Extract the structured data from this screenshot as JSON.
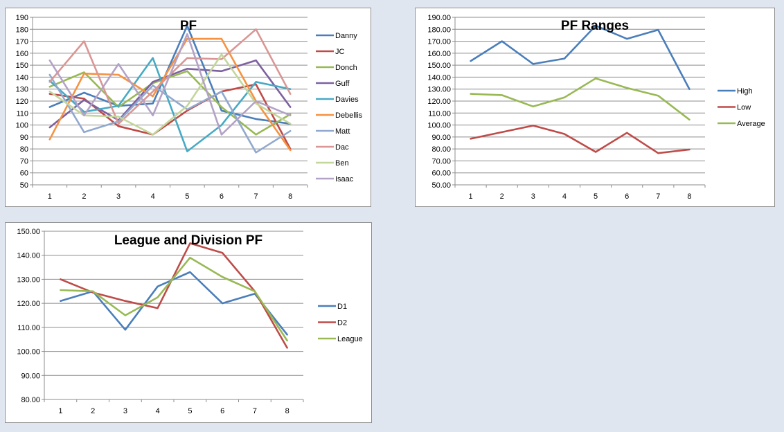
{
  "colors": {
    "Danny": "#4a7ebb",
    "JC": "#be4b48",
    "Donch": "#98b954",
    "Guff": "#7d60a0",
    "Davies": "#46aac5",
    "Debellis": "#f69240",
    "Matt": "#92a9cf",
    "Dac": "#d99694",
    "Ben": "#c3d69b",
    "Isaac": "#b3a2c7",
    "High": "#4a7ebb",
    "Low": "#be4b48",
    "Average": "#98b954",
    "D1": "#4a7ebb",
    "D2": "#be4b48",
    "League": "#98b954"
  },
  "chart_data": [
    {
      "id": "pf",
      "type": "line",
      "title": "PF",
      "legend_position": "right",
      "grid": true,
      "x": [
        "1",
        "2",
        "3",
        "4",
        "5",
        "6",
        "7",
        "8"
      ],
      "ylim": [
        50,
        190
      ],
      "yticks": [
        "50",
        "60",
        "70",
        "80",
        "90",
        "100",
        "110",
        "120",
        "130",
        "140",
        "150",
        "160",
        "170",
        "180",
        "190"
      ],
      "series": [
        {
          "name": "Danny",
          "values": [
            115,
            127,
            116,
            118,
            183,
            112,
            105,
            101
          ]
        },
        {
          "name": "JC",
          "values": [
            126,
            122,
            99,
            92,
            112,
            128,
            134,
            80
          ]
        },
        {
          "name": "Donch",
          "values": [
            132,
            144,
            115,
            135,
            145,
            115,
            92,
            109
          ]
        },
        {
          "name": "Guff",
          "values": [
            98,
            121,
            104,
            136,
            147,
            145,
            154,
            115
          ]
        },
        {
          "name": "Davies",
          "values": [
            137,
            111,
            116,
            156,
            78,
            100,
            136,
            130
          ]
        },
        {
          "name": "Debellis",
          "values": [
            88,
            143,
            142,
            124,
            172,
            172,
            120,
            79
          ]
        },
        {
          "name": "Matt",
          "values": [
            142,
            94,
            103,
            133,
            113,
            128,
            77,
            95
          ]
        },
        {
          "name": "Dac",
          "values": [
            136,
            170,
            101,
            128,
            156,
            155,
            180,
            126
          ]
        },
        {
          "name": "Ben",
          "values": [
            128,
            108,
            107,
            92,
            116,
            159,
            118,
            101
          ]
        },
        {
          "name": "Isaac",
          "values": [
            154,
            108,
            151,
            108,
            176,
            92,
            120,
            108
          ]
        }
      ]
    },
    {
      "id": "ranges",
      "type": "line",
      "title": "PF Ranges",
      "legend_position": "right",
      "grid": true,
      "x": [
        "1",
        "2",
        "3",
        "4",
        "5",
        "6",
        "7",
        "8"
      ],
      "ylim": [
        50,
        190
      ],
      "yticks": [
        "50.00",
        "60.00",
        "70.00",
        "80.00",
        "90.00",
        "100.00",
        "110.00",
        "120.00",
        "130.00",
        "140.00",
        "150.00",
        "160.00",
        "170.00",
        "180.00",
        "190.00"
      ],
      "series": [
        {
          "name": "High",
          "values": [
            153.5,
            170,
            151,
            155.5,
            183,
            172,
            179.5,
            130
          ]
        },
        {
          "name": "Low",
          "values": [
            88.5,
            94,
            99.5,
            92.5,
            77.5,
            93.5,
            76.5,
            79.5
          ]
        },
        {
          "name": "Average",
          "values": [
            126,
            125,
            115.5,
            123,
            139,
            131,
            124.5,
            104.5
          ]
        }
      ]
    },
    {
      "id": "league",
      "type": "line",
      "title": "League and Division PF",
      "legend_position": "right",
      "grid": true,
      "x": [
        "1",
        "2",
        "3",
        "4",
        "5",
        "6",
        "7",
        "8"
      ],
      "ylim": [
        80,
        150
      ],
      "yticks": [
        "80.00",
        "90.00",
        "100.00",
        "110.00",
        "120.00",
        "130.00",
        "140.00",
        "150.00"
      ],
      "series": [
        {
          "name": "D1",
          "values": [
            121,
            125,
            109,
            127,
            133,
            120,
            124,
            107
          ]
        },
        {
          "name": "D2",
          "values": [
            130,
            124.5,
            121,
            118,
            145,
            141,
            125,
            101.5
          ]
        },
        {
          "name": "League",
          "values": [
            125.5,
            125,
            115,
            122.5,
            139,
            131,
            125,
            104.5
          ]
        }
      ]
    }
  ]
}
